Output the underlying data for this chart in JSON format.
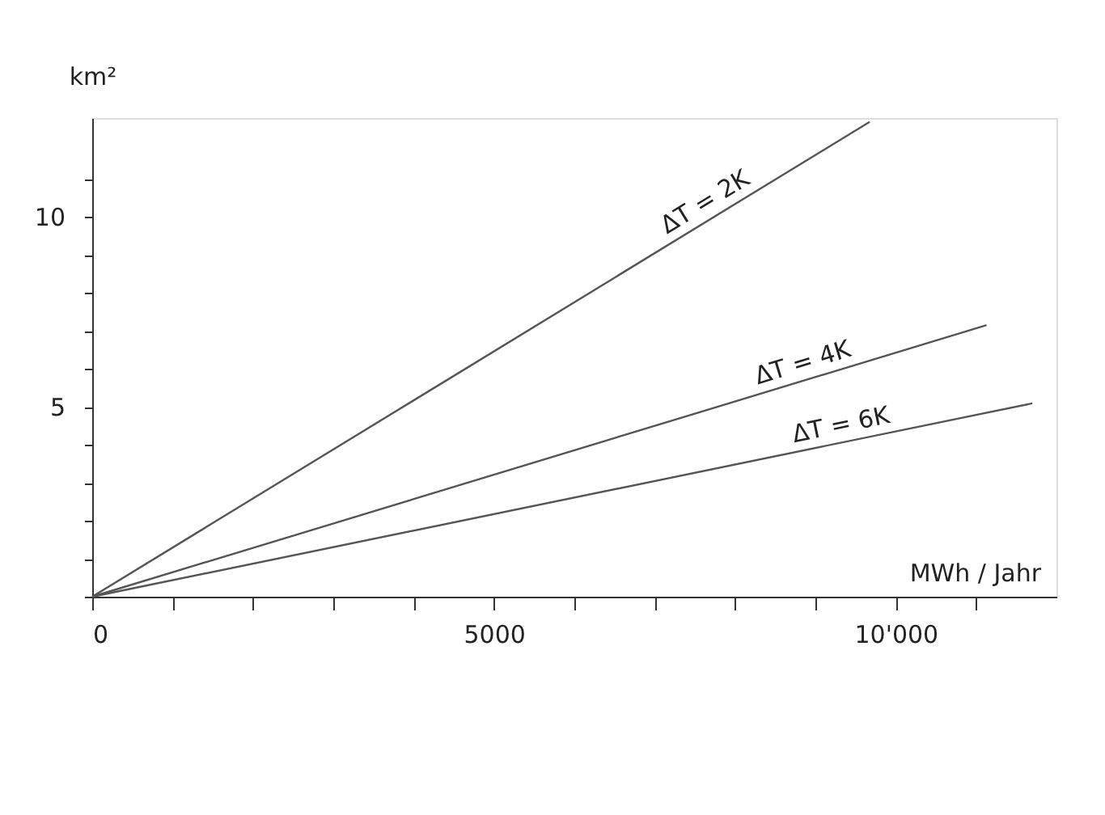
{
  "chart_data": {
    "type": "line",
    "xlabel": "MWh / Jahr",
    "ylabel": "km²",
    "xlim": [
      0,
      12000
    ],
    "ylim": [
      0,
      12.6
    ],
    "xticks": [
      0,
      {
        "value": 1000,
        "label": null
      },
      {
        "value": 2000,
        "label": null
      },
      {
        "value": 3000,
        "label": null
      },
      {
        "value": 4000,
        "label": null
      },
      5000,
      {
        "value": 6000,
        "label": null
      },
      {
        "value": 7000,
        "label": null
      },
      {
        "value": 8000,
        "label": null
      },
      {
        "value": 9000,
        "label": null
      },
      {
        "value": 10000,
        "label": "10'000"
      },
      {
        "value": 11000,
        "label": null
      }
    ],
    "yticks": [
      {
        "value": 0,
        "label": null
      },
      {
        "value": 1,
        "label": null
      },
      {
        "value": 2,
        "label": null
      },
      {
        "value": 3,
        "label": null
      },
      {
        "value": 4,
        "label": null
      },
      5,
      {
        "value": 6,
        "label": null
      },
      {
        "value": 7,
        "label": null
      },
      {
        "value": 8,
        "label": null
      },
      {
        "value": 9,
        "label": null
      },
      10,
      {
        "value": 11,
        "label": null
      }
    ],
    "grid": false,
    "legend": false,
    "marker": "none",
    "line_style": "solid",
    "series": [
      {
        "name": "ΔT = 2K",
        "color": "#555555",
        "x": [
          0,
          9675
        ],
        "values": [
          0,
          12.5
        ]
      },
      {
        "name": "ΔT = 4K",
        "color": "#555555",
        "x": [
          0,
          11130
        ],
        "values": [
          0,
          7.15
        ]
      },
      {
        "name": "ΔT = 6K",
        "color": "#555555",
        "x": [
          0,
          11700
        ],
        "values": [
          0,
          5.09
        ]
      }
    ]
  }
}
